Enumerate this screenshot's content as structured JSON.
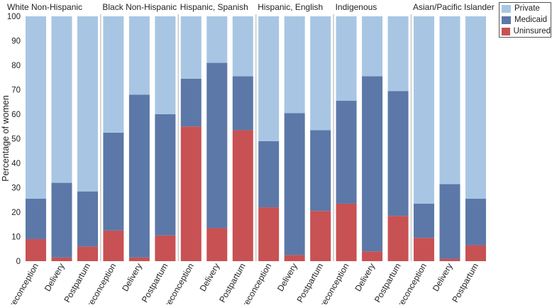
{
  "chart_data": {
    "type": "bar",
    "stacked": true,
    "ylabel": "Percentage of women",
    "ylim": [
      0,
      100
    ],
    "yticks": [
      0,
      10,
      20,
      30,
      40,
      50,
      60,
      70,
      80,
      90,
      100
    ],
    "groups": [
      {
        "name": "White Non-Hispanic",
        "categories": [
          "Preconception",
          "Delivery",
          "Postpartum"
        ],
        "uninsured": [
          9,
          1.5,
          6
        ],
        "medicaid": [
          16.5,
          30.5,
          22.5
        ],
        "private": [
          74.5,
          68,
          71.5
        ]
      },
      {
        "name": "Black Non-Hispanic",
        "categories": [
          "Preconception",
          "Delivery",
          "Postpartum"
        ],
        "uninsured": [
          12.5,
          1.5,
          10.5
        ],
        "medicaid": [
          40,
          66.5,
          49.5
        ],
        "private": [
          47.5,
          32,
          40
        ]
      },
      {
        "name": "Hispanic, Spanish",
        "categories": [
          "Preconception",
          "Delivery",
          "Postpartum"
        ],
        "uninsured": [
          55,
          13.5,
          53.5
        ],
        "medicaid": [
          19.5,
          67.5,
          22
        ],
        "private": [
          25.5,
          19,
          24.5
        ]
      },
      {
        "name": "Hispanic, English",
        "categories": [
          "Preconception",
          "Delivery",
          "Postpartum"
        ],
        "uninsured": [
          22,
          2.5,
          20.5
        ],
        "medicaid": [
          27,
          58,
          33
        ],
        "private": [
          51,
          39.5,
          46.5
        ]
      },
      {
        "name": "Indigenous",
        "categories": [
          "Preconception",
          "Delivery",
          "Postpartum"
        ],
        "uninsured": [
          23.5,
          4,
          18.5
        ],
        "medicaid": [
          42,
          71.5,
          51
        ],
        "private": [
          34.5,
          24.5,
          30.5
        ]
      },
      {
        "name": "Asian/Pacific Islander",
        "categories": [
          "Preconception",
          "Delivery",
          "Postpartum"
        ],
        "uninsured": [
          9.5,
          1,
          6.5
        ],
        "medicaid": [
          14,
          30.5,
          19
        ],
        "private": [
          76.5,
          68.5,
          74.5
        ]
      }
    ],
    "series": [
      {
        "name": "Private",
        "key": "private",
        "color": "#a8c6e3"
      },
      {
        "name": "Medicaid",
        "key": "medicaid",
        "color": "#5b78a8"
      },
      {
        "name": "Uninsured",
        "key": "uninsured",
        "color": "#c85153"
      }
    ],
    "legend_position": "top-right",
    "background_color": "#ffffff",
    "divider_color": "#c8c8c8"
  }
}
